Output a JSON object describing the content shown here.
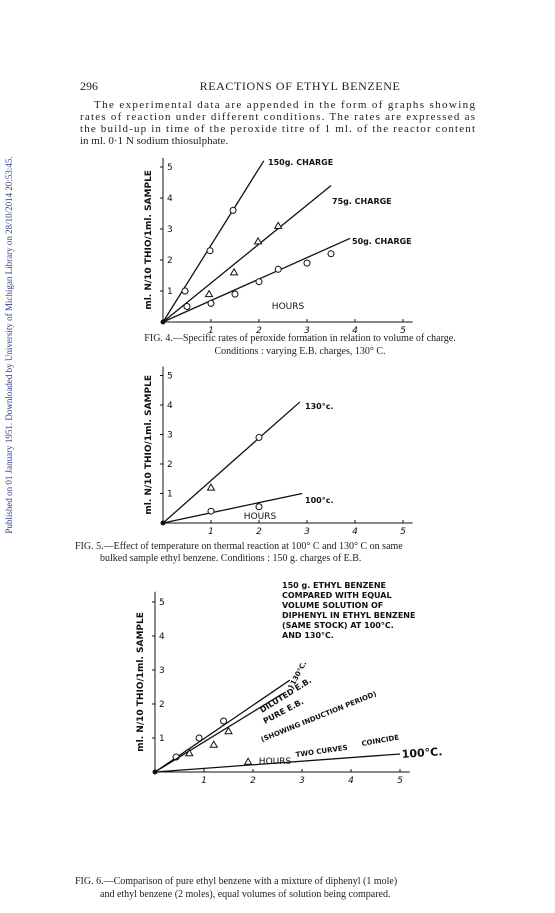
{
  "side_note": "Published on 01 January 1951. Downloaded by University of Michigan Library on 28/10/2014 20:53:45.",
  "header": {
    "page_number": "296",
    "title": "REACTIONS OF ETHYL BENZENE"
  },
  "body": {
    "lines": [
      "The experimental data are appended in the form of graphs showing",
      "rates of reaction under different conditions.  The rates are expressed as",
      "the build-up in time of the peroxide titre of 1 ml. of the reactor content",
      "in ml. 0·1 N sodium thiosulphate."
    ]
  },
  "figures": [
    {
      "caption_lines": [
        "FIG. 4.—Specific rates of peroxide formation in relation to volume of charge.",
        "Conditions : varying E.B. charges, 130° C."
      ],
      "chart_data": {
        "type": "line",
        "y_label": "ml. N/10 THIO/1ml. SAMPLE",
        "x_label": "HOURS",
        "xlim": [
          0,
          5.2
        ],
        "ylim": [
          0,
          5.3
        ],
        "xticks": [
          1,
          2,
          3,
          4,
          5
        ],
        "yticks": [
          1,
          2,
          3,
          4,
          5
        ],
        "series": [
          {
            "name": "150g. CHARGE",
            "marker": "circle",
            "points": {
              "x": [
                0.46,
                0.98,
                1.46
              ],
              "y": [
                1.0,
                2.3,
                3.6
              ]
            },
            "line": {
              "x": [
                0,
                2.1
              ],
              "y": [
                0,
                5.2
              ]
            }
          },
          {
            "name": "75g. CHARGE",
            "marker": "triangle",
            "points": {
              "x": [
                0.96,
                1.48,
                1.98,
                2.4
              ],
              "y": [
                0.9,
                1.6,
                2.6,
                3.1
              ]
            },
            "line": {
              "x": [
                0,
                3.5
              ],
              "y": [
                0,
                4.4
              ]
            }
          },
          {
            "name": "50g. CHARGE",
            "marker": "circle",
            "points": {
              "x": [
                0.5,
                1.0,
                1.5,
                2.0,
                2.4,
                3.0,
                3.5
              ],
              "y": [
                0.5,
                0.6,
                0.9,
                1.3,
                1.7,
                1.9,
                2.2
              ]
            },
            "line": {
              "x": [
                0,
                3.9
              ],
              "y": [
                0,
                2.7
              ]
            }
          }
        ]
      }
    },
    {
      "caption_lines": [
        "FIG. 5.—Effect of temperature on thermal reaction at 100° C and 130° C on same",
        "bulked sample ethyl benzene.   Conditions : 150 g. charges of E.B."
      ],
      "chart_data": {
        "type": "line",
        "y_label": "ml. N/10 THIO/1ml. SAMPLE",
        "x_label": "HOURS",
        "xlim": [
          0,
          5.2
        ],
        "ylim": [
          0,
          5.3
        ],
        "xticks": [
          1,
          2,
          3,
          4,
          5
        ],
        "yticks": [
          1,
          2,
          3,
          4,
          5
        ],
        "series": [
          {
            "name": "130°c.",
            "marker": "mixed",
            "points": {
              "x": [
                1.0,
                2.0
              ],
              "y": [
                1.2,
                2.9
              ]
            },
            "line": {
              "x": [
                0,
                2.85
              ],
              "y": [
                0,
                4.1
              ]
            }
          },
          {
            "name": "100°c.",
            "marker": "circle",
            "points": {
              "x": [
                1.0,
                2.0
              ],
              "y": [
                0.4,
                0.55
              ]
            },
            "line": {
              "x": [
                0,
                2.9
              ],
              "y": [
                0,
                1.0
              ]
            }
          }
        ]
      }
    },
    {
      "caption_lines": [
        "FIG. 6.—Comparison of pure ethyl benzene with a mixture of diphenyl (1 mole)",
        "and ethyl benzene (2 moles), equal volumes of solution being compared."
      ],
      "chart_data": {
        "type": "line",
        "y_label": "ml. N/10 THIO/1ml. SAMPLE",
        "x_label": "HOURS",
        "xlim": [
          0,
          5.2
        ],
        "ylim": [
          0,
          5.3
        ],
        "xticks": [
          1,
          2,
          3,
          4,
          5
        ],
        "yticks": [
          1,
          2,
          3,
          4,
          5
        ],
        "notes": [
          "150 g. ETHYL BENZENE",
          "COMPARED WITH EQUAL",
          "VOLUME SOLUTION OF",
          "DIPHENYL IN ETHYL BENZENE",
          "(SAME STOCK) AT 100°C.",
          "AND 130°C."
        ],
        "annotations": [
          "}130°C.",
          "(SHOWING INDUCTION PERIOD)",
          "TWO CURVES",
          "COINCIDE"
        ],
        "series": [
          {
            "name": "DILUTED E.B.",
            "marker": "circle",
            "points": {
              "x": [
                0.43,
                0.9,
                1.4
              ],
              "y": [
                0.44,
                1.0,
                1.5
              ]
            },
            "line": {
              "x": [
                0,
                2.75
              ],
              "y": [
                0,
                2.7
              ]
            }
          },
          {
            "name": "PURE E.B.",
            "marker": "triangle",
            "points": {
              "x": [
                0.7,
                1.2,
                1.5
              ],
              "y": [
                0.55,
                0.8,
                1.2
              ]
            },
            "line": {
              "x": [
                0,
                2.6
              ],
              "y": [
                0,
                2.3
              ]
            }
          },
          {
            "name": "100°C.",
            "marker": "triangle",
            "points": {
              "x": [
                1.9
              ],
              "y": [
                0.3
              ]
            },
            "line": {
              "x": [
                0,
                5.0
              ],
              "y": [
                0,
                0.53
              ]
            }
          }
        ]
      }
    }
  ]
}
